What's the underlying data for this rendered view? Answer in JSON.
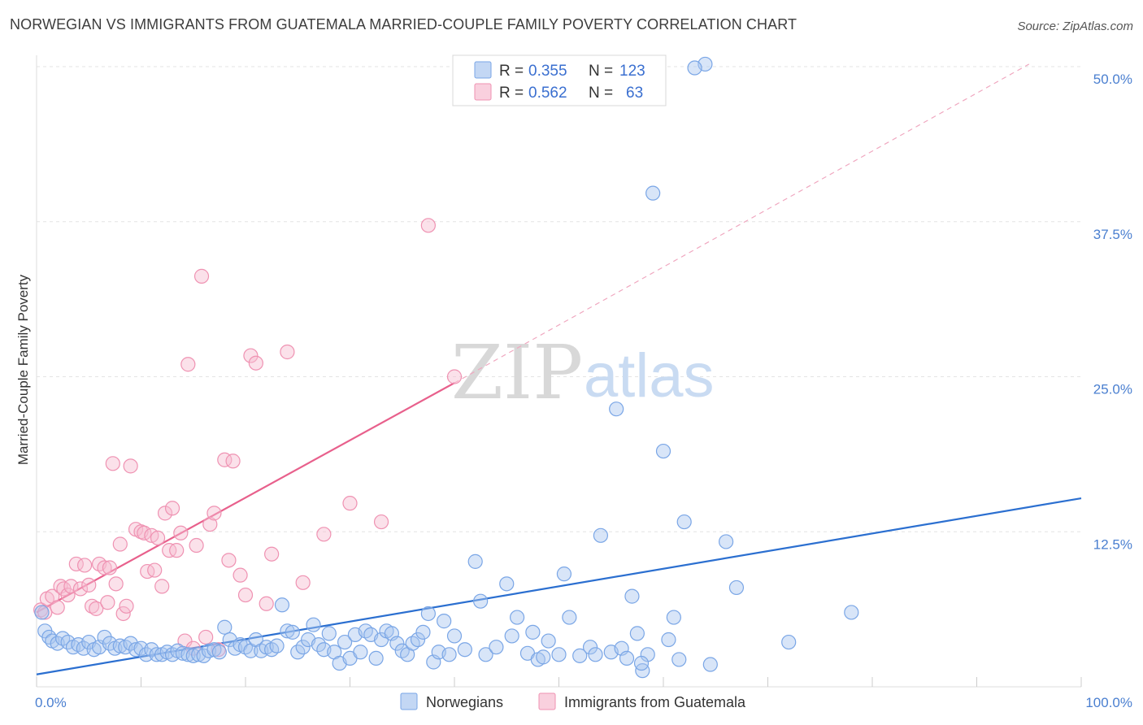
{
  "title": "NORWEGIAN VS IMMIGRANTS FROM GUATEMALA MARRIED-COUPLE FAMILY POVERTY CORRELATION CHART",
  "source": "Source: ZipAtlas.com",
  "watermark": {
    "zip": "ZIP",
    "atlas": "atlas"
  },
  "colors": {
    "blue_fill": "#a9c6f0",
    "blue_stroke": "#7aa6e6",
    "blue_line": "#2b6fd0",
    "pink_fill": "#f7bcd0",
    "pink_stroke": "#ef92b2",
    "pink_line": "#e8608c",
    "grid": "#e3e3e3",
    "tick_text": "#4a7fd0"
  },
  "legend": {
    "rows": [
      {
        "r_label": "R =",
        "r_value": "0.355",
        "n_label": "N =",
        "n_value": "123",
        "series": "blue"
      },
      {
        "r_label": "R =",
        "r_value": "0.562",
        "n_label": "N =",
        "n_value": "63",
        "series": "pink"
      }
    ]
  },
  "bottom_legend": [
    "Norwegians",
    "Immigrants from Guatemala"
  ],
  "chart_data": {
    "type": "scatter",
    "xlabel": "",
    "ylabel": "Married-Couple Family Poverty",
    "xlim": [
      0,
      100
    ],
    "ylim": [
      0,
      50
    ],
    "x_ticks": [
      "0.0%",
      "100.0%"
    ],
    "y_ticks": [
      {
        "value": 12.5,
        "label": "12.5%"
      },
      {
        "value": 25,
        "label": "25.0%"
      },
      {
        "value": 37.5,
        "label": "37.5%"
      },
      {
        "value": 50,
        "label": "50.0%"
      }
    ],
    "grid": "horizontal dashed",
    "legend_position": "top-center",
    "series": [
      {
        "name": "Norwegians",
        "color": "blue",
        "trend": {
          "x": [
            0,
            100
          ],
          "y": [
            1.0,
            15.2
          ]
        },
        "points": [
          [
            0.5,
            6.0
          ],
          [
            0.8,
            4.5
          ],
          [
            1.2,
            4.0
          ],
          [
            1.5,
            3.7
          ],
          [
            2.0,
            3.5
          ],
          [
            2.5,
            3.9
          ],
          [
            3.0,
            3.6
          ],
          [
            3.5,
            3.2
          ],
          [
            4.0,
            3.4
          ],
          [
            4.5,
            3.1
          ],
          [
            5.0,
            3.6
          ],
          [
            5.5,
            3.0
          ],
          [
            6.0,
            3.2
          ],
          [
            6.5,
            4.0
          ],
          [
            7.0,
            3.5
          ],
          [
            7.5,
            3.1
          ],
          [
            8.0,
            3.3
          ],
          [
            8.5,
            3.2
          ],
          [
            9.0,
            3.5
          ],
          [
            9.5,
            3.0
          ],
          [
            10.0,
            3.1
          ],
          [
            10.5,
            2.6
          ],
          [
            11.0,
            3.0
          ],
          [
            11.5,
            2.6
          ],
          [
            12.0,
            2.6
          ],
          [
            12.5,
            2.8
          ],
          [
            13.0,
            2.6
          ],
          [
            13.5,
            2.9
          ],
          [
            14.0,
            2.7
          ],
          [
            14.5,
            2.6
          ],
          [
            15.0,
            2.5
          ],
          [
            15.5,
            2.6
          ],
          [
            16.0,
            2.5
          ],
          [
            16.5,
            2.9
          ],
          [
            17.0,
            3.0
          ],
          [
            17.5,
            2.8
          ],
          [
            18.0,
            4.8
          ],
          [
            18.5,
            3.8
          ],
          [
            19.0,
            3.1
          ],
          [
            19.5,
            3.4
          ],
          [
            20.0,
            3.2
          ],
          [
            20.5,
            2.9
          ],
          [
            21.0,
            3.8
          ],
          [
            21.5,
            2.9
          ],
          [
            22.0,
            3.2
          ],
          [
            22.5,
            3.0
          ],
          [
            23.0,
            3.3
          ],
          [
            23.5,
            6.6
          ],
          [
            24.0,
            4.5
          ],
          [
            24.5,
            4.4
          ],
          [
            25.0,
            2.8
          ],
          [
            25.5,
            3.2
          ],
          [
            26.0,
            3.8
          ],
          [
            26.5,
            5.0
          ],
          [
            27.0,
            3.4
          ],
          [
            27.5,
            3.0
          ],
          [
            28.0,
            4.3
          ],
          [
            28.5,
            2.8
          ],
          [
            29.0,
            1.9
          ],
          [
            29.5,
            3.6
          ],
          [
            30.0,
            2.3
          ],
          [
            30.5,
            4.2
          ],
          [
            31.0,
            2.8
          ],
          [
            31.5,
            4.5
          ],
          [
            32.0,
            4.2
          ],
          [
            32.5,
            2.3
          ],
          [
            33.0,
            3.8
          ],
          [
            33.5,
            4.5
          ],
          [
            34.0,
            4.3
          ],
          [
            34.5,
            3.5
          ],
          [
            35.0,
            2.9
          ],
          [
            35.5,
            2.6
          ],
          [
            36.0,
            3.5
          ],
          [
            36.5,
            3.8
          ],
          [
            37.0,
            4.4
          ],
          [
            37.5,
            5.9
          ],
          [
            38.0,
            2.0
          ],
          [
            38.5,
            2.8
          ],
          [
            39.0,
            5.3
          ],
          [
            39.5,
            2.6
          ],
          [
            40.0,
            4.1
          ],
          [
            41.0,
            3.0
          ],
          [
            42.0,
            10.1
          ],
          [
            42.5,
            6.9
          ],
          [
            43.0,
            2.6
          ],
          [
            44.0,
            3.2
          ],
          [
            45.0,
            8.3
          ],
          [
            45.5,
            4.1
          ],
          [
            46.0,
            5.6
          ],
          [
            47.0,
            2.7
          ],
          [
            47.5,
            4.4
          ],
          [
            48.0,
            2.2
          ],
          [
            49.0,
            3.7
          ],
          [
            50.0,
            2.6
          ],
          [
            50.5,
            9.1
          ],
          [
            51.0,
            5.6
          ],
          [
            52.0,
            2.5
          ],
          [
            53.0,
            3.2
          ],
          [
            54.0,
            12.2
          ],
          [
            55.0,
            2.8
          ],
          [
            56.0,
            3.1
          ],
          [
            56.5,
            2.3
          ],
          [
            57.0,
            7.3
          ],
          [
            57.5,
            4.3
          ],
          [
            58.0,
            1.3
          ],
          [
            58.5,
            2.6
          ],
          [
            59.0,
            39.8
          ],
          [
            60.0,
            19.0
          ],
          [
            61.0,
            5.6
          ],
          [
            61.5,
            2.2
          ],
          [
            62.0,
            13.3
          ],
          [
            64.0,
            50.2
          ],
          [
            64.5,
            1.8
          ],
          [
            66.0,
            11.7
          ],
          [
            67.0,
            8.0
          ],
          [
            72.0,
            3.6
          ],
          [
            78.0,
            6.0
          ],
          [
            55.5,
            22.4
          ],
          [
            63.0,
            49.9
          ],
          [
            48.5,
            2.4
          ],
          [
            53.5,
            2.6
          ],
          [
            57.9,
            1.9
          ],
          [
            60.5,
            3.8
          ]
        ]
      },
      {
        "name": "Immigrants from Guatemala",
        "color": "pink",
        "trend": {
          "x": [
            0,
            40
          ],
          "y": [
            6.0,
            24.5
          ]
        },
        "trend_extension": {
          "x": [
            40,
            95
          ],
          "y": [
            24.5,
            50.2
          ]
        },
        "points": [
          [
            0.4,
            6.2
          ],
          [
            0.8,
            6.0
          ],
          [
            1.0,
            7.1
          ],
          [
            1.5,
            7.3
          ],
          [
            2.0,
            6.4
          ],
          [
            2.3,
            8.1
          ],
          [
            2.6,
            7.9
          ],
          [
            3.0,
            7.4
          ],
          [
            3.3,
            8.1
          ],
          [
            3.8,
            9.9
          ],
          [
            4.2,
            7.9
          ],
          [
            4.6,
            9.8
          ],
          [
            5.0,
            8.2
          ],
          [
            5.3,
            6.5
          ],
          [
            5.7,
            6.3
          ],
          [
            6.0,
            9.9
          ],
          [
            6.5,
            9.6
          ],
          [
            6.8,
            6.8
          ],
          [
            7.0,
            9.6
          ],
          [
            7.3,
            18.0
          ],
          [
            7.6,
            8.3
          ],
          [
            8.0,
            11.5
          ],
          [
            8.3,
            5.9
          ],
          [
            8.6,
            6.5
          ],
          [
            9.0,
            17.8
          ],
          [
            9.5,
            12.7
          ],
          [
            10.0,
            12.5
          ],
          [
            10.3,
            12.4
          ],
          [
            10.6,
            9.3
          ],
          [
            11.0,
            12.2
          ],
          [
            11.3,
            9.4
          ],
          [
            11.6,
            12.0
          ],
          [
            12.0,
            8.1
          ],
          [
            12.3,
            14.0
          ],
          [
            12.7,
            11.0
          ],
          [
            13.0,
            14.4
          ],
          [
            13.4,
            11.0
          ],
          [
            13.8,
            12.4
          ],
          [
            14.2,
            3.7
          ],
          [
            14.5,
            26.0
          ],
          [
            15.0,
            3.1
          ],
          [
            15.3,
            11.4
          ],
          [
            15.8,
            33.1
          ],
          [
            16.2,
            4.0
          ],
          [
            16.6,
            13.1
          ],
          [
            17.0,
            14.0
          ],
          [
            17.4,
            3.0
          ],
          [
            18.0,
            18.3
          ],
          [
            18.4,
            10.2
          ],
          [
            18.8,
            18.2
          ],
          [
            19.5,
            9.0
          ],
          [
            20.0,
            7.4
          ],
          [
            20.5,
            26.7
          ],
          [
            21.0,
            26.1
          ],
          [
            22.0,
            6.7
          ],
          [
            22.5,
            10.7
          ],
          [
            24.0,
            27.0
          ],
          [
            25.5,
            8.4
          ],
          [
            27.5,
            12.3
          ],
          [
            30.0,
            14.8
          ],
          [
            33.0,
            13.3
          ],
          [
            37.5,
            37.2
          ],
          [
            40.0,
            25.0
          ]
        ]
      }
    ]
  }
}
